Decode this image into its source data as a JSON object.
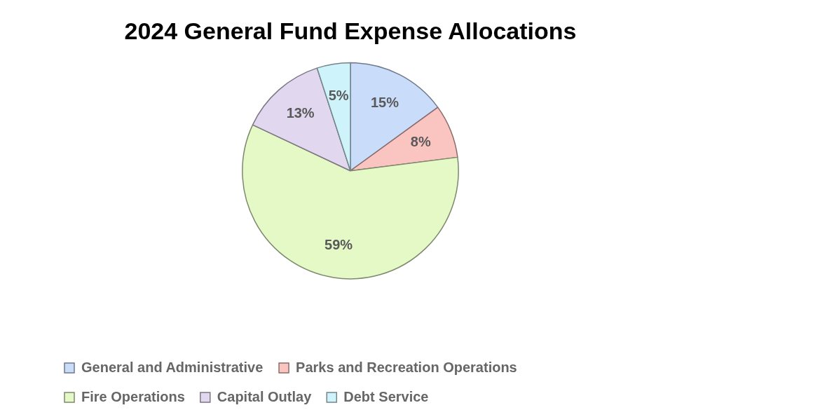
{
  "chart_data": {
    "type": "pie",
    "title": "2024 General Fund Expense Allocations",
    "categories": [
      "General and Administrative",
      "Parks and Recreation Operations",
      "Fire Operations",
      "Capital Outlay",
      "Debt Service"
    ],
    "values": [
      15,
      8,
      59,
      13,
      5
    ],
    "value_labels": [
      "15%",
      "8%",
      "59%",
      "13%",
      "5%"
    ],
    "colors": [
      "#c9dcfa",
      "#fac4c1",
      "#e4f9c6",
      "#e1d8ef",
      "#cff3fb"
    ],
    "legend": "bottom"
  }
}
